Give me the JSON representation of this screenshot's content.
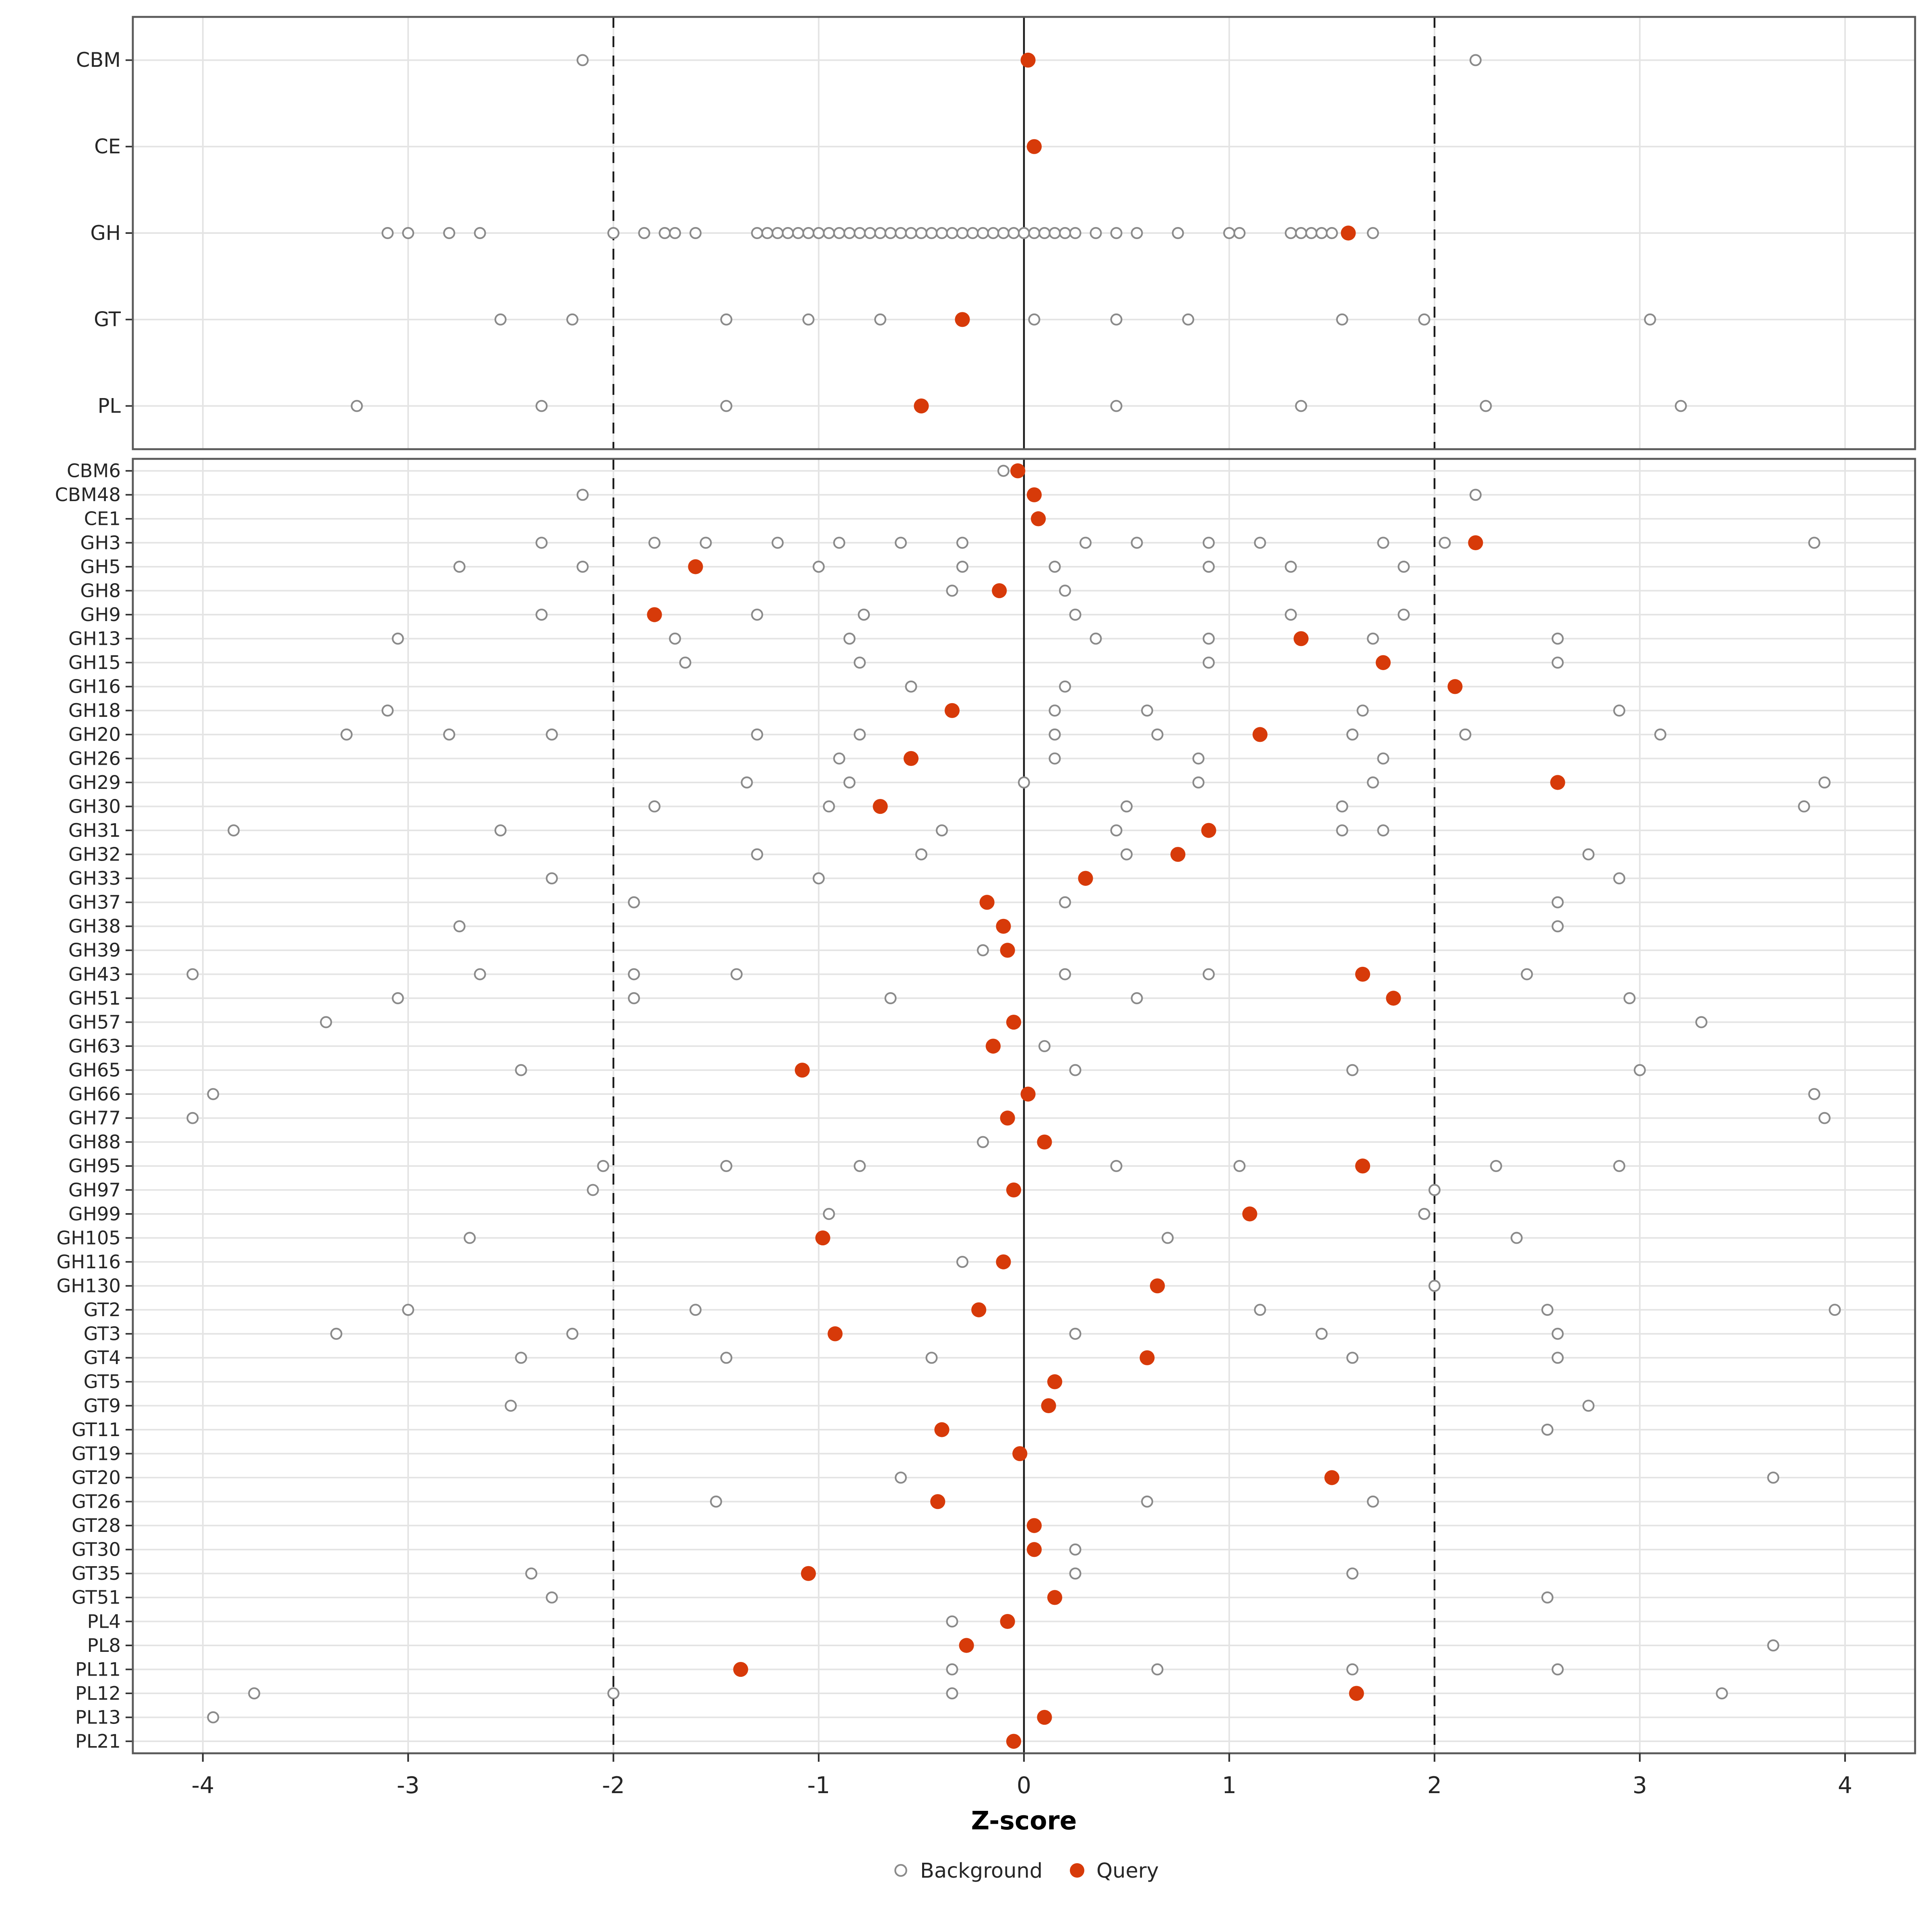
{
  "chart_data": {
    "type": "scatter",
    "xlabel": "Z-score",
    "axis": {
      "ticks": [
        -4,
        -3,
        -2,
        -1,
        0,
        1,
        2,
        3,
        4
      ],
      "xlim": [
        -4.35,
        4.35
      ]
    },
    "reference_lines": {
      "solid_at": 0,
      "dashed_at": [
        -2,
        2
      ]
    },
    "legend_background_label": "Background",
    "legend_query_label": "Query",
    "legend_position": "bottom",
    "grid": "major-only",
    "colors": {
      "query": "#d73a09",
      "background_stroke": "#8a8a8a",
      "gridline": "#e4e4e4",
      "ref_line": "#1a1a1a",
      "panel_border": "#595959",
      "axis_text": "#262626"
    },
    "panels": [
      {
        "name": "families",
        "rows": [
          {
            "label": "CBM",
            "query": 0.02,
            "background": [
              -2.15,
              2.2
            ]
          },
          {
            "label": "CE",
            "query": 0.05,
            "background": []
          },
          {
            "label": "GH",
            "query": 1.58,
            "background": [
              -3.1,
              -3.0,
              -2.8,
              -2.65,
              -2.0,
              -1.85,
              -1.75,
              -1.7,
              -1.6,
              -1.3,
              -1.25,
              -1.2,
              -1.15,
              -1.1,
              -1.05,
              -1.0,
              -0.95,
              -0.9,
              -0.85,
              -0.8,
              -0.75,
              -0.7,
              -0.65,
              -0.6,
              -0.55,
              -0.5,
              -0.45,
              -0.4,
              -0.35,
              -0.3,
              -0.25,
              -0.2,
              -0.15,
              -0.1,
              -0.05,
              0.0,
              0.05,
              0.1,
              0.15,
              0.2,
              0.25,
              0.35,
              0.45,
              0.55,
              0.75,
              1.0,
              1.05,
              1.3,
              1.35,
              1.4,
              1.45,
              1.5,
              1.7
            ]
          },
          {
            "label": "GT",
            "query": -0.3,
            "background": [
              -2.55,
              -2.2,
              -1.45,
              -1.05,
              -0.7,
              0.05,
              0.45,
              0.8,
              1.55,
              1.95,
              3.05
            ]
          },
          {
            "label": "PL",
            "query": -0.5,
            "background": [
              -3.25,
              -2.35,
              -1.45,
              0.45,
              1.35,
              2.25,
              3.2
            ]
          }
        ]
      },
      {
        "name": "subfamilies",
        "rows": [
          {
            "label": "CBM6",
            "query": -0.03,
            "background": [
              -0.1
            ]
          },
          {
            "label": "CBM48",
            "query": 0.05,
            "background": [
              -2.15,
              2.2
            ]
          },
          {
            "label": "CE1",
            "query": 0.07,
            "background": []
          },
          {
            "label": "GH3",
            "query": 2.2,
            "background": [
              -2.35,
              -1.8,
              -1.55,
              -1.2,
              -0.9,
              -0.6,
              -0.3,
              0.3,
              0.55,
              0.9,
              1.15,
              1.75,
              2.05,
              3.85
            ]
          },
          {
            "label": "GH5",
            "query": -1.6,
            "background": [
              -2.75,
              -2.15,
              -1.0,
              -0.3,
              0.15,
              0.9,
              1.3,
              1.85
            ]
          },
          {
            "label": "GH8",
            "query": -0.12,
            "background": [
              -0.35,
              0.2
            ]
          },
          {
            "label": "GH9",
            "query": -1.8,
            "background": [
              -2.35,
              -1.3,
              -0.78,
              0.25,
              1.3,
              1.85
            ]
          },
          {
            "label": "GH13",
            "query": 1.35,
            "background": [
              -3.05,
              -1.7,
              -0.85,
              0.35,
              0.9,
              1.7,
              2.6
            ]
          },
          {
            "label": "GH15",
            "query": 1.75,
            "background": [
              -1.65,
              -0.8,
              0.9,
              2.6
            ]
          },
          {
            "label": "GH16",
            "query": 2.1,
            "background": [
              -0.55,
              0.2
            ]
          },
          {
            "label": "GH18",
            "query": -0.35,
            "background": [
              -3.1,
              0.15,
              0.6,
              1.65,
              2.9
            ]
          },
          {
            "label": "GH20",
            "query": 1.15,
            "background": [
              -3.3,
              -2.8,
              -2.3,
              -1.3,
              -0.8,
              0.15,
              0.65,
              1.6,
              2.15,
              3.1
            ]
          },
          {
            "label": "GH26",
            "query": -0.55,
            "background": [
              -0.9,
              0.15,
              0.85,
              1.75
            ]
          },
          {
            "label": "GH29",
            "query": 2.6,
            "background": [
              -1.35,
              -0.85,
              0.0,
              0.85,
              1.7,
              3.9
            ]
          },
          {
            "label": "GH30",
            "query": -0.7,
            "background": [
              -1.8,
              -0.95,
              0.5,
              1.55,
              3.8
            ]
          },
          {
            "label": "GH31",
            "query": 0.9,
            "background": [
              -3.85,
              -2.55,
              -0.4,
              0.45,
              1.55,
              1.75
            ]
          },
          {
            "label": "GH32",
            "query": 0.75,
            "background": [
              -1.3,
              -0.5,
              0.5,
              2.75
            ]
          },
          {
            "label": "GH33",
            "query": 0.3,
            "background": [
              -2.3,
              -1.0,
              2.9
            ]
          },
          {
            "label": "GH37",
            "query": -0.18,
            "background": [
              -1.9,
              0.2,
              2.6
            ]
          },
          {
            "label": "GH38",
            "query": -0.1,
            "background": [
              -2.75,
              2.6
            ]
          },
          {
            "label": "GH39",
            "query": -0.08,
            "background": [
              -0.2
            ]
          },
          {
            "label": "GH43",
            "query": 1.65,
            "background": [
              -4.05,
              -2.65,
              -1.9,
              -1.4,
              0.2,
              0.9,
              2.45
            ]
          },
          {
            "label": "GH51",
            "query": 1.8,
            "background": [
              -3.05,
              -1.9,
              -0.65,
              0.55,
              2.95
            ]
          },
          {
            "label": "GH57",
            "query": -0.05,
            "background": [
              -3.4,
              3.3
            ]
          },
          {
            "label": "GH63",
            "query": -0.15,
            "background": [
              0.1
            ]
          },
          {
            "label": "GH65",
            "query": -1.08,
            "background": [
              -2.45,
              0.25,
              1.6,
              3.0
            ]
          },
          {
            "label": "GH66",
            "query": 0.02,
            "background": [
              -3.95,
              3.85
            ]
          },
          {
            "label": "GH77",
            "query": -0.08,
            "background": [
              -4.05,
              3.9
            ]
          },
          {
            "label": "GH88",
            "query": 0.1,
            "background": [
              -0.2
            ]
          },
          {
            "label": "GH95",
            "query": 1.65,
            "background": [
              -2.05,
              -1.45,
              -0.8,
              0.45,
              1.05,
              2.3,
              2.9
            ]
          },
          {
            "label": "GH97",
            "query": -0.05,
            "background": [
              -2.1,
              2.0
            ]
          },
          {
            "label": "GH99",
            "query": 1.1,
            "background": [
              -0.95,
              1.95
            ]
          },
          {
            "label": "GH105",
            "query": -0.98,
            "background": [
              -2.7,
              0.7,
              2.4
            ]
          },
          {
            "label": "GH116",
            "query": -0.1,
            "background": [
              -0.3
            ]
          },
          {
            "label": "GH130",
            "query": 0.65,
            "background": [
              2.0
            ]
          },
          {
            "label": "GT2",
            "query": -0.22,
            "background": [
              -3.0,
              -1.6,
              1.15,
              2.55,
              3.95
            ]
          },
          {
            "label": "GT3",
            "query": -0.92,
            "background": [
              -3.35,
              -2.2,
              0.25,
              1.45,
              2.6
            ]
          },
          {
            "label": "GT4",
            "query": 0.6,
            "background": [
              -2.45,
              -1.45,
              -0.45,
              1.6,
              2.6
            ]
          },
          {
            "label": "GT5",
            "query": 0.15,
            "background": []
          },
          {
            "label": "GT9",
            "query": 0.12,
            "background": [
              -2.5,
              2.75
            ]
          },
          {
            "label": "GT11",
            "query": -0.4,
            "background": [
              2.55
            ]
          },
          {
            "label": "GT19",
            "query": -0.02,
            "background": []
          },
          {
            "label": "GT20",
            "query": 1.5,
            "background": [
              -0.6,
              3.65
            ]
          },
          {
            "label": "GT26",
            "query": -0.42,
            "background": [
              -1.5,
              0.6,
              1.7
            ]
          },
          {
            "label": "GT28",
            "query": 0.05,
            "background": []
          },
          {
            "label": "GT30",
            "query": 0.05,
            "background": [
              0.25
            ]
          },
          {
            "label": "GT35",
            "query": -1.05,
            "background": [
              -2.4,
              0.25,
              1.6
            ]
          },
          {
            "label": "GT51",
            "query": 0.15,
            "background": [
              -2.3,
              2.55
            ]
          },
          {
            "label": "PL4",
            "query": -0.08,
            "background": [
              -0.35
            ]
          },
          {
            "label": "PL8",
            "query": -0.28,
            "background": [
              3.65
            ]
          },
          {
            "label": "PL11",
            "query": -1.38,
            "background": [
              -0.35,
              0.65,
              1.6,
              2.6
            ]
          },
          {
            "label": "PL12",
            "query": 1.62,
            "background": [
              -3.75,
              -2.0,
              -0.35,
              3.4
            ]
          },
          {
            "label": "PL13",
            "query": 0.1,
            "background": [
              -3.95
            ]
          },
          {
            "label": "PL21",
            "query": -0.05,
            "background": []
          }
        ]
      }
    ]
  }
}
